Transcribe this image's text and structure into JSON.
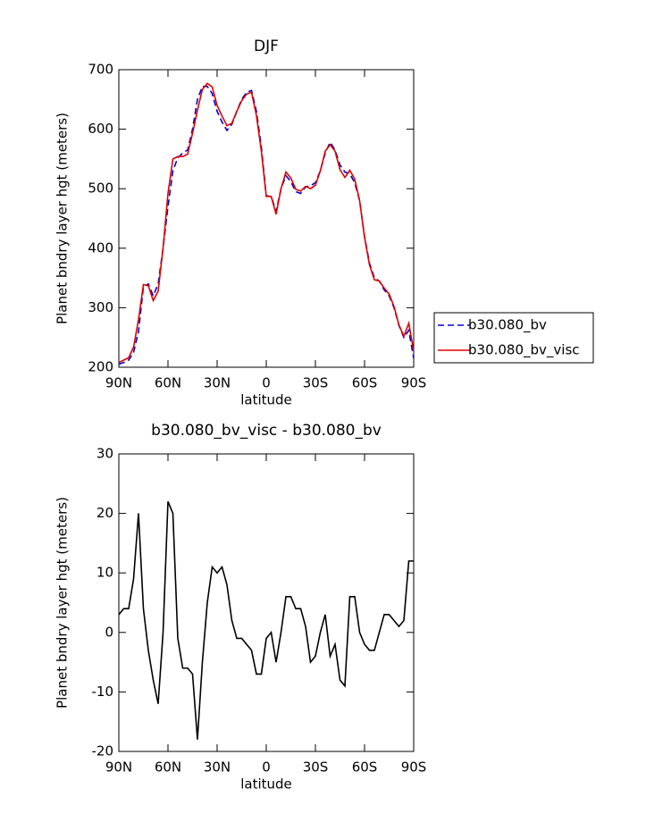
{
  "chart_data": [
    {
      "type": "line",
      "title": "DJF",
      "xlabel": "latitude",
      "ylabel": "Planet bndry layer hgt (meters)",
      "x": [
        90,
        87,
        84,
        81,
        78,
        75,
        72,
        69,
        66,
        63,
        60,
        57,
        54,
        51,
        48,
        45,
        42,
        39,
        36,
        33,
        30,
        27,
        24,
        21,
        18,
        15,
        12,
        9,
        6,
        3,
        0,
        -3,
        -6,
        -9,
        -12,
        -15,
        -18,
        -21,
        -24,
        -27,
        -30,
        -33,
        -36,
        -39,
        -42,
        -45,
        -48,
        -51,
        -54,
        -57,
        -60,
        -63,
        -66,
        -69,
        -72,
        -75,
        -78,
        -81,
        -84,
        -87,
        -90
      ],
      "series": [
        {
          "name": "b30.080_bv",
          "color": "#0000cc",
          "line_style": "dashed",
          "values": [
            205,
            208,
            212,
            225,
            260,
            335,
            340,
            320,
            340,
            400,
            470,
            530,
            552,
            560,
            565,
            600,
            650,
            672,
            672,
            660,
            630,
            612,
            598,
            608,
            630,
            650,
            662,
            665,
            630,
            570,
            488,
            487,
            462,
            500,
            522,
            512,
            495,
            492,
            503,
            505,
            510,
            530,
            560,
            578,
            565,
            540,
            528,
            525,
            510,
            480,
            420,
            375,
            350,
            345,
            330,
            320,
            300,
            270,
            250,
            262,
            215
          ]
        },
        {
          "name": "b30.080_bv_visc",
          "color": "#e00000",
          "line_style": "solid",
          "values": [
            208,
            212,
            216,
            234,
            280,
            339,
            337,
            312,
            328,
            400,
            492,
            550,
            554,
            554,
            558,
            593,
            632,
            667,
            677,
            671,
            640,
            622,
            606,
            610,
            630,
            648,
            659,
            662,
            623,
            563,
            487,
            487,
            457,
            500,
            528,
            518,
            499,
            496,
            504,
            500,
            506,
            530,
            563,
            574,
            563,
            532,
            519,
            531,
            516,
            480,
            418,
            372,
            347,
            345,
            333,
            323,
            302,
            271,
            252,
            274,
            227
          ]
        }
      ],
      "xlim": [
        90,
        -90
      ],
      "xticks": [
        {
          "value": 90,
          "label": "90N"
        },
        {
          "value": 60,
          "label": "60N"
        },
        {
          "value": 30,
          "label": "30N"
        },
        0,
        {
          "value": -30,
          "label": "30S"
        },
        {
          "value": -60,
          "label": "60S"
        },
        {
          "value": -90,
          "label": "90S"
        }
      ],
      "ylim": [
        200,
        700
      ],
      "yticks": [
        200,
        300,
        400,
        500,
        600,
        700
      ],
      "legend": "right"
    },
    {
      "type": "line",
      "title": "b30.080_bv_visc - b30.080_bv",
      "xlabel": "latitude",
      "ylabel": "Planet bndry layer hgt (meters)",
      "x": [
        90,
        87,
        84,
        81,
        78,
        75,
        72,
        69,
        66,
        63,
        60,
        57,
        54,
        51,
        48,
        45,
        42,
        39,
        36,
        33,
        30,
        27,
        24,
        21,
        18,
        15,
        12,
        9,
        6,
        3,
        0,
        -3,
        -6,
        -9,
        -12,
        -15,
        -18,
        -21,
        -24,
        -27,
        -30,
        -33,
        -36,
        -39,
        -42,
        -45,
        -48,
        -51,
        -54,
        -57,
        -60,
        -63,
        -66,
        -69,
        -72,
        -75,
        -78,
        -81,
        -84,
        -87,
        -90
      ],
      "values": [
        3,
        4,
        4,
        9,
        20,
        4,
        -3,
        -8,
        -12,
        0,
        22,
        20,
        -1,
        -6,
        -6,
        -7,
        -18,
        -5,
        5,
        11,
        10,
        11,
        8,
        2,
        -1,
        -1,
        -2,
        -3,
        -7,
        -7,
        -1,
        0,
        -5,
        0,
        6,
        6,
        4,
        4,
        1,
        -5,
        -4,
        0,
        3,
        -4,
        -2,
        -8,
        -9,
        6,
        6,
        0,
        -2,
        -3,
        -3,
        0,
        3,
        3,
        2,
        1,
        2,
        12,
        12
      ],
      "color": "#000000",
      "xlim": [
        90,
        -90
      ],
      "xticks": [
        {
          "value": 90,
          "label": "90N"
        },
        {
          "value": 60,
          "label": "60N"
        },
        {
          "value": 30,
          "label": "30N"
        },
        0,
        {
          "value": -30,
          "label": "30S"
        },
        {
          "value": -60,
          "label": "60S"
        },
        {
          "value": -90,
          "label": "90S"
        }
      ],
      "ylim": [
        -20,
        30
      ],
      "yticks": [
        -20,
        -10,
        0,
        10,
        20,
        30
      ]
    }
  ]
}
